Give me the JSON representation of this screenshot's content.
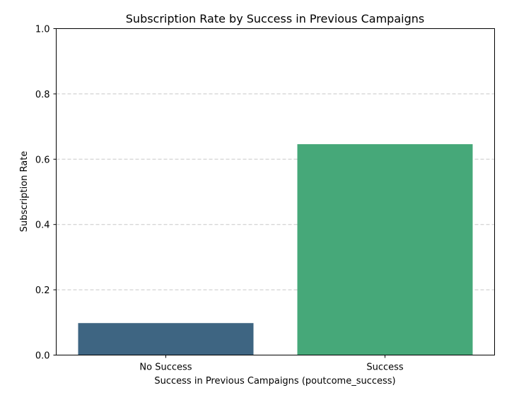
{
  "chart_data": {
    "type": "bar",
    "title": "Subscription Rate by Success in Previous Campaigns",
    "xlabel": "Success in Previous Campaigns (poutcome_success)",
    "ylabel": "Subscription Rate",
    "categories": [
      "No Success",
      "Success"
    ],
    "values": [
      0.098,
      0.646
    ],
    "colors": [
      "#3e6582",
      "#46a879"
    ],
    "ylim": [
      0,
      1.0
    ],
    "yticks": [
      "0.0",
      "0.2",
      "0.4",
      "0.6",
      "0.8",
      "1.0"
    ],
    "grid": "y-axis dashed",
    "legend": "none"
  }
}
